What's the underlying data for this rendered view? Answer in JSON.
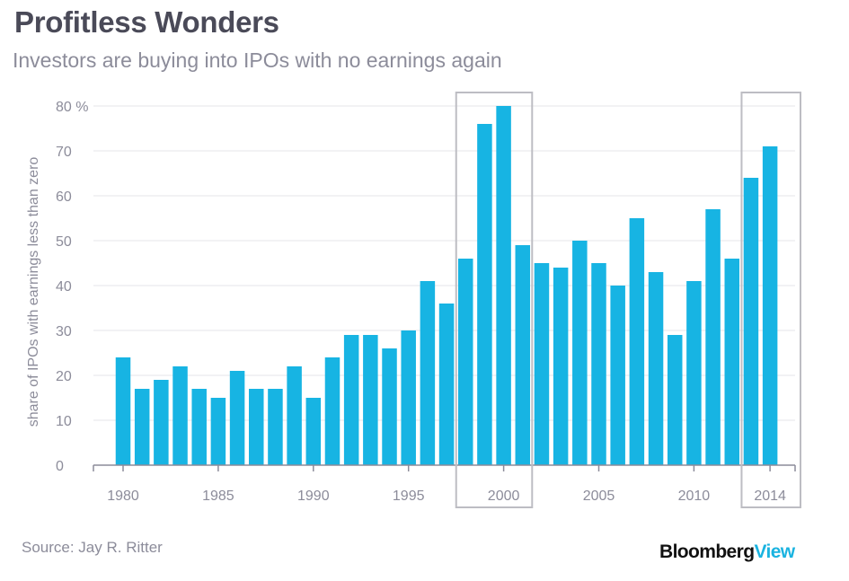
{
  "header": {
    "title": "Profitless Wonders",
    "subtitle": "Investors are buying into IPOs with no earnings again"
  },
  "footer": {
    "source": "Source: Jay R. Ritter",
    "brand_main": "Bloomberg",
    "brand_accent": "View"
  },
  "colors": {
    "bar": "#17b4e3",
    "gridline": "#e6e6ea",
    "axis": "#8c8c9a",
    "highlight_box": "#bdbdc3",
    "title": "#4a4a58",
    "brand_accent": "#1ab3e0"
  },
  "chart_data": {
    "type": "bar",
    "title": "Profitless Wonders",
    "subtitle": "Investors are buying into IPOs with no earnings again",
    "xlabel": "",
    "ylabel": "share of IPOs with earnings less than zero",
    "ylim": [
      0,
      80
    ],
    "yticks": [
      0,
      10,
      20,
      30,
      40,
      50,
      60,
      70,
      80
    ],
    "ytick_labels": [
      "0",
      "10",
      "20",
      "30",
      "40",
      "50",
      "60",
      "70",
      "80 %"
    ],
    "xtick_labels": [
      "1980",
      "1985",
      "1990",
      "1995",
      "2000",
      "2005",
      "2010",
      "2014"
    ],
    "grid": true,
    "categories": [
      1980,
      1981,
      1982,
      1983,
      1984,
      1985,
      1986,
      1987,
      1988,
      1989,
      1990,
      1991,
      1992,
      1993,
      1994,
      1995,
      1996,
      1997,
      1998,
      1999,
      2000,
      2001,
      2002,
      2003,
      2004,
      2005,
      2006,
      2007,
      2008,
      2009,
      2010,
      2011,
      2012,
      2013,
      2014
    ],
    "values": [
      24,
      17,
      19,
      22,
      17,
      15,
      21,
      17,
      17,
      22,
      15,
      24,
      29,
      29,
      26,
      30,
      41,
      36,
      46,
      76,
      80,
      49,
      45,
      44,
      50,
      45,
      40,
      55,
      43,
      29,
      41,
      57,
      46,
      64,
      71
    ],
    "highlights": [
      {
        "from": 1998,
        "to": 2001
      },
      {
        "from": 2013,
        "to": 2016
      }
    ]
  }
}
